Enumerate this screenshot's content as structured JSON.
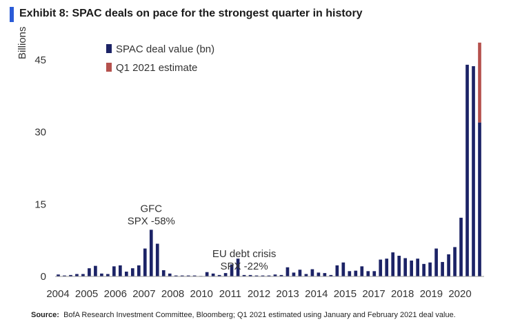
{
  "header": {
    "title": "Exhibit 8: SPAC deals on pace for the strongest quarter in history"
  },
  "source": {
    "label": "Source:",
    "text": "BofA Research Investment Committee, Bloomberg; Q1 2021 estimated using January and February 2021 deal value."
  },
  "colors": {
    "deal_value": "#1c2366",
    "estimate": "#b5514d",
    "title_bar": "#2a5bd7"
  },
  "chart_data": {
    "type": "bar",
    "stacked": true,
    "ylabel": "Billions",
    "xlabel": "",
    "ylim": [
      0,
      48
    ],
    "yticks": [
      0,
      15,
      30,
      45
    ],
    "xtick_labels": [
      "2004",
      "2005",
      "2006",
      "2007",
      "2008",
      "2010",
      "2011",
      "2012",
      "2013",
      "2014",
      "2015",
      "2017",
      "2018",
      "2019",
      "2020"
    ],
    "grid": false,
    "legend_position": "top-left",
    "legend": [
      "SPAC deal value (bn)",
      "Q1 2021 estimate"
    ],
    "series": [
      {
        "name": "SPAC deal value (bn)",
        "values": [
          0.4,
          0.2,
          0.3,
          0.5,
          0.5,
          1.7,
          2.2,
          0.6,
          0.5,
          2.1,
          2.3,
          1.0,
          1.7,
          2.3,
          5.8,
          9.7,
          6.8,
          1.3,
          0.6,
          0.2,
          0.2,
          0.2,
          0.2,
          0.1,
          0.9,
          0.6,
          0.3,
          0.7,
          2.5,
          3.7,
          0.3,
          0.3,
          0.2,
          0.2,
          0.2,
          0.4,
          0.3,
          1.9,
          0.8,
          1.4,
          0.5,
          1.5,
          0.8,
          0.7,
          0.3,
          2.3,
          2.9,
          1.1,
          1.2,
          2.1,
          1.1,
          1.1,
          3.5,
          3.7,
          5.0,
          4.3,
          3.8,
          3.3,
          3.7,
          2.6,
          2.9,
          5.8,
          3.0,
          4.6,
          6.1,
          12.2,
          44.0,
          43.7,
          32.0
        ]
      },
      {
        "name": "Q1 2021 estimate",
        "values": [
          0,
          0,
          0,
          0,
          0,
          0,
          0,
          0,
          0,
          0,
          0,
          0,
          0,
          0,
          0,
          0,
          0,
          0,
          0,
          0,
          0,
          0,
          0,
          0,
          0,
          0,
          0,
          0,
          0,
          0,
          0,
          0,
          0,
          0,
          0,
          0,
          0,
          0,
          0,
          0,
          0,
          0,
          0,
          0,
          0,
          0,
          0,
          0,
          0,
          0,
          0,
          0,
          0,
          0,
          0,
          0,
          0,
          0,
          0,
          0,
          0,
          0,
          0,
          0,
          0,
          0,
          0,
          0,
          16.6
        ]
      }
    ],
    "annotations": [
      {
        "lines": [
          "GFC",
          "SPX -58%"
        ],
        "near_bar": 15
      },
      {
        "lines": [
          "EU debt crisis",
          "SPX -22%"
        ],
        "near_bar": 30
      }
    ]
  }
}
